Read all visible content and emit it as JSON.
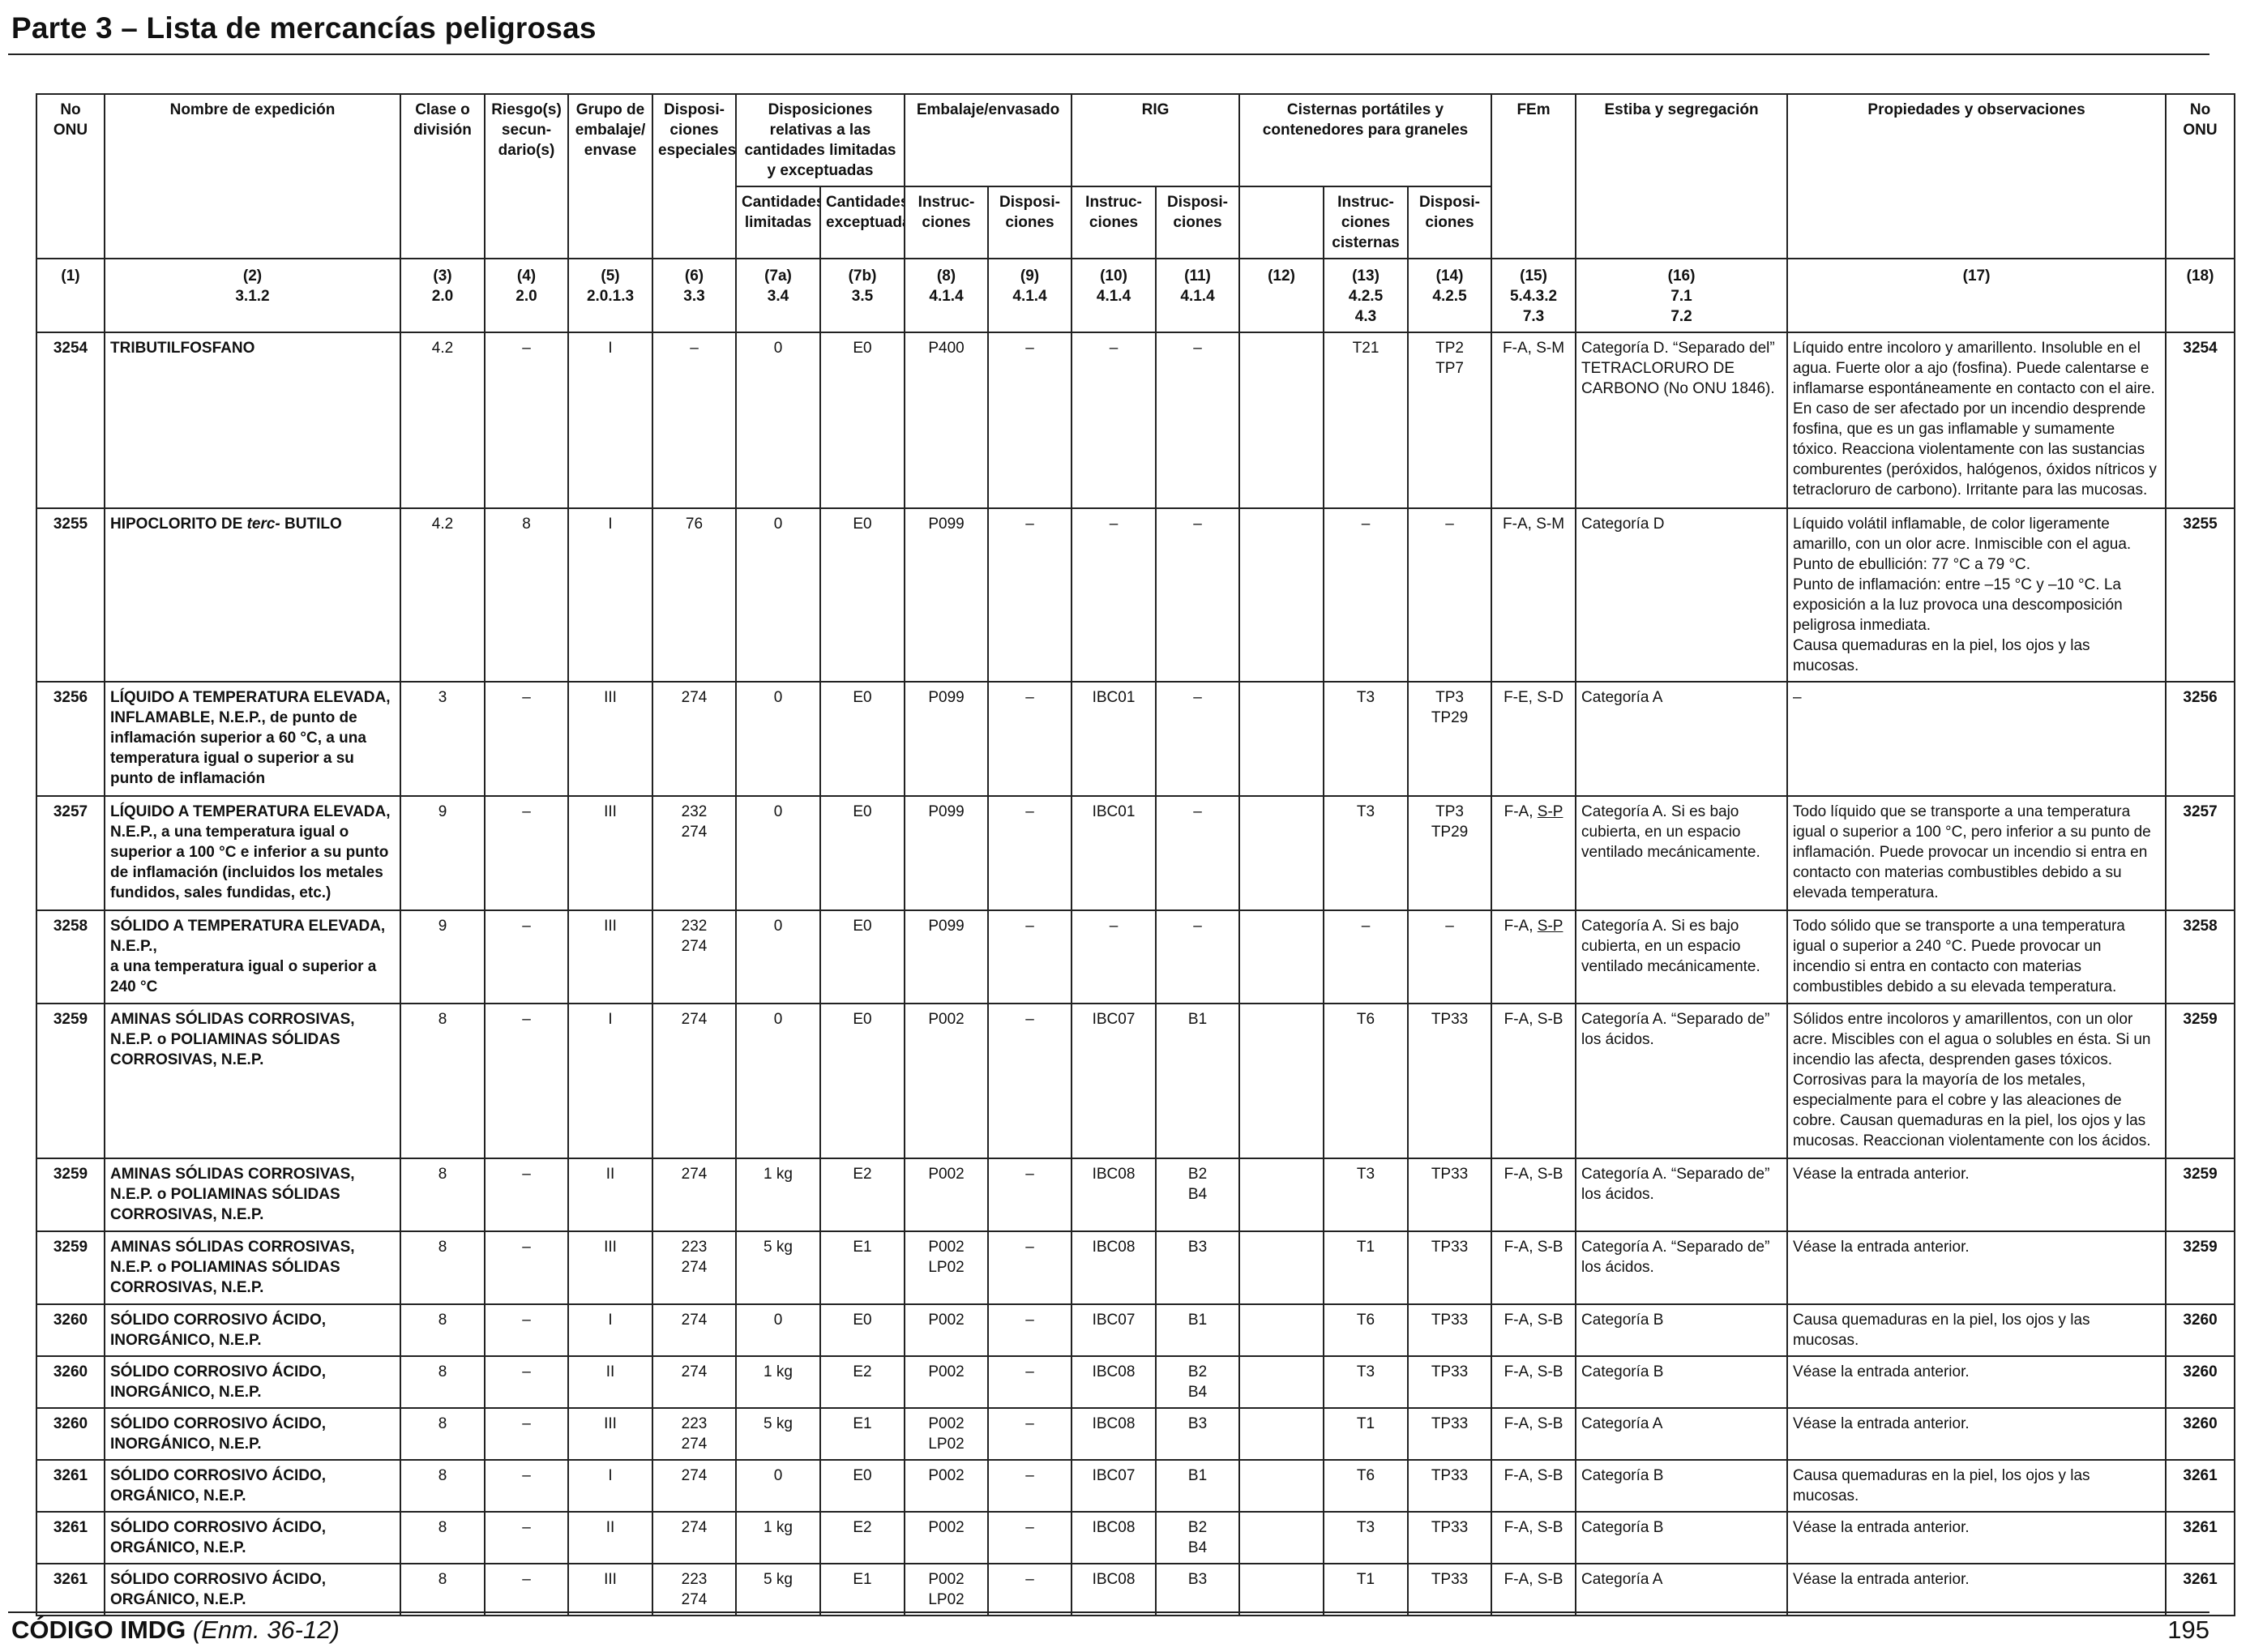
{
  "page": {
    "title": "Parte 3 – Lista de mercancías peligrosas",
    "footer_code": "CÓDIGO IMDG",
    "footer_edition": "(Enm. 36-12)",
    "page_number": "195"
  },
  "headers": {
    "no_onu": "No ONU",
    "nombre": "Nombre de expedición",
    "clase": "Clase o división",
    "riesgo": "Riesgo(s) secun-dario(s)",
    "grupo": "Grupo de embalaje/ envase",
    "dispo": "Disposi-ciones especiales",
    "disp_rel": "Disposiciones relativas a las cantidades limitadas y exceptuadas",
    "cant_lim": "Cantidades limitadas",
    "cant_exc": "Cantidades exceptuadas",
    "embalaje": "Embalaje/envasado",
    "instr": "Instruc-ciones",
    "disp": "Disposi-ciones",
    "rig": "RIG",
    "cisternas": "Cisternas portátiles y contenedores para graneles",
    "instr_cist": "Instruc-ciones cisternas",
    "fem": "FEm",
    "estiba": "Estiba y segregación",
    "propiedades": "Propiedades y observaciones",
    "no_onu_right": "No ONU"
  },
  "colnums": {
    "c1": "(1)",
    "c2": "(2)\n3.1.2",
    "c3": "(3)\n2.0",
    "c4": "(4)\n2.0",
    "c5": "(5)\n2.0.1.3",
    "c6": "(6)\n3.3",
    "c7a": "(7a)\n3.4",
    "c7b": "(7b)\n3.5",
    "c8": "(8)\n4.1.4",
    "c9": "(9)\n4.1.4",
    "c10": "(10)\n4.1.4",
    "c11": "(11)\n4.1.4",
    "c12": "(12)",
    "c13": "(13)\n4.2.5\n4.3",
    "c14": "(14)\n4.2.5",
    "c15": "(15)\n5.4.3.2\n7.3",
    "c16": "(16)\n7.1\n7.2",
    "c17": "(17)",
    "c18": "(18)"
  },
  "rows": [
    {
      "un": "3254",
      "name": "TRIBUTILFOSFANO",
      "clase": "4.2",
      "riesgo": "–",
      "grupo": "I",
      "dispo": "–",
      "lq": "0",
      "eq": "E0",
      "instr": "P400",
      "disp": "–",
      "ibc": "–",
      "ibc_disp": "–",
      "c12": "",
      "tank": "T21",
      "tank_disp": "TP2\nTP7",
      "fem": "F-A, S-M",
      "estiba": "Categoría D. “Separado del” TETRACLORURO DE CARBONO (No ONU 1846).",
      "prop": "Líquido entre incoloro y amarillento. Insoluble en el agua. Fuerte olor a ajo (fosfina). Puede calentarse e inflamarse espontáneamente en contacto con el aire. En caso de ser afectado por un incendio desprende fosfina, que es un gas inflamable y sumamente tóxico. Reacciona violentamente con las sustancias comburentes (peróxidos, halógenos, óxidos nítricos y tetracloruro de carbono). Irritante para las mucosas."
    },
    {
      "un": "3255",
      "name_a": "HIPOCLORITO DE ",
      "name_i": "terc-",
      "name_b": " BUTILO",
      "clase": "4.2",
      "riesgo": "8",
      "grupo": "I",
      "dispo": "76",
      "lq": "0",
      "eq": "E0",
      "instr": "P099",
      "disp": "–",
      "ibc": "–",
      "ibc_disp": "–",
      "c12": "",
      "tank": "–",
      "tank_disp": "–",
      "fem": "F-A, S-M",
      "estiba": "Categoría D",
      "prop": "Líquido volátil inflamable, de color ligeramente amarillo, con un olor acre. Inmiscible con el agua.\nPunto de ebullición: 77 °C a 79 °C.\nPunto de inflamación: entre –15 °C y –10 °C. La exposición a la luz provoca una descomposición peligrosa inmediata.\nCausa quemaduras en la piel, los ojos y las mucosas."
    },
    {
      "un": "3256",
      "name": "LÍQUIDO A TEMPERATURA ELEVADA, INFLAMABLE, N.E.P., de punto de inflamación superior a 60 °C, a una temperatura igual o superior a su punto de inflamación",
      "clase": "3",
      "riesgo": "–",
      "grupo": "III",
      "dispo": "274",
      "lq": "0",
      "eq": "E0",
      "instr": "P099",
      "disp": "–",
      "ibc": "IBC01",
      "ibc_disp": "–",
      "c12": "",
      "tank": "T3",
      "tank_disp": "TP3\nTP29",
      "fem": "F-E, S-D",
      "estiba": "Categoría A",
      "prop": "–"
    },
    {
      "un": "3257",
      "name": "LÍQUIDO A TEMPERATURA ELEVADA, N.E.P., a una temperatura igual o superior a 100 °C e inferior a su punto de inflamación (incluidos los metales fundidos, sales fundidas, etc.)",
      "clase": "9",
      "riesgo": "–",
      "grupo": "III",
      "dispo": "232\n274",
      "lq": "0",
      "eq": "E0",
      "instr": "P099",
      "disp": "–",
      "ibc": "IBC01",
      "ibc_disp": "–",
      "c12": "",
      "tank": "T3",
      "tank_disp": "TP3\nTP29",
      "fem_a": "F-A, ",
      "fem_u": "S-P",
      "estiba": "Categoría A. Si es bajo cubierta, en un espacio ventilado mecánicamente.",
      "prop": "Todo líquido que se transporte a una temperatura igual o superior a 100 °C, pero inferior a su punto de inflamación. Puede provocar un incendio si entra en contacto con materias combustibles debido a su elevada temperatura."
    },
    {
      "un": "3258",
      "name": "SÓLIDO A TEMPERATURA ELEVADA, N.E.P.,\na una temperatura igual o superior a 240 °C",
      "clase": "9",
      "riesgo": "–",
      "grupo": "III",
      "dispo": "232\n274",
      "lq": "0",
      "eq": "E0",
      "instr": "P099",
      "disp": "–",
      "ibc": "–",
      "ibc_disp": "–",
      "c12": "",
      "tank": "–",
      "tank_disp": "–",
      "fem_a": "F-A, ",
      "fem_u": "S-P",
      "estiba": "Categoría A. Si es bajo cubierta, en un espacio ventilado mecánicamente.",
      "prop": "Todo sólido que se transporte a una temperatura igual o superior a 240 °C. Puede provocar un incendio si entra en contacto con materias combustibles debido a su elevada temperatura."
    },
    {
      "un": "3259",
      "name": "AMINAS SÓLIDAS CORROSIVAS, N.E.P. o POLIAMINAS SÓLIDAS CORROSIVAS, N.E.P.",
      "clase": "8",
      "riesgo": "–",
      "grupo": "I",
      "dispo": "274",
      "lq": "0",
      "eq": "E0",
      "instr": "P002",
      "disp": "–",
      "ibc": "IBC07",
      "ibc_disp": "B1",
      "c12": "",
      "tank": "T6",
      "tank_disp": "TP33",
      "fem": "F-A, S-B",
      "estiba": "Categoría A. “Separado de” los ácidos.",
      "prop": "Sólidos entre incoloros y amarillentos, con un olor acre. Miscibles con el agua o solubles en ésta. Si un incendio las afecta, desprenden gases tóxicos. Corrosivas para la mayoría de los metales, especialmente para el cobre y las aleaciones de cobre. Causan quemaduras en la piel, los ojos y las mucosas. Reaccionan violentamente con los ácidos."
    },
    {
      "un": "3259",
      "name": "AMINAS SÓLIDAS CORROSIVAS, N.E.P. o POLIAMINAS SÓLIDAS CORROSIVAS, N.E.P.",
      "clase": "8",
      "riesgo": "–",
      "grupo": "II",
      "dispo": "274",
      "lq": "1 kg",
      "eq": "E2",
      "instr": "P002",
      "disp": "–",
      "ibc": "IBC08",
      "ibc_disp": "B2\nB4",
      "c12": "",
      "tank": "T3",
      "tank_disp": "TP33",
      "fem": "F-A, S-B",
      "estiba": "Categoría A. “Separado de” los ácidos.",
      "prop": "Véase la entrada anterior."
    },
    {
      "un": "3259",
      "name": "AMINAS SÓLIDAS CORROSIVAS, N.E.P. o POLIAMINAS SÓLIDAS CORROSIVAS, N.E.P.",
      "clase": "8",
      "riesgo": "–",
      "grupo": "III",
      "dispo": "223\n274",
      "lq": "5 kg",
      "eq": "E1",
      "instr": "P002\nLP02",
      "disp": "–",
      "ibc": "IBC08",
      "ibc_disp": "B3",
      "c12": "",
      "tank": "T1",
      "tank_disp": "TP33",
      "fem": "F-A, S-B",
      "estiba": "Categoría A. “Separado de” los ácidos.",
      "prop": "Véase la entrada anterior."
    },
    {
      "un": "3260",
      "name": "SÓLIDO CORROSIVO ÁCIDO, INORGÁNICO, N.E.P.",
      "clase": "8",
      "riesgo": "–",
      "grupo": "I",
      "dispo": "274",
      "lq": "0",
      "eq": "E0",
      "instr": "P002",
      "disp": "–",
      "ibc": "IBC07",
      "ibc_disp": "B1",
      "c12": "",
      "tank": "T6",
      "tank_disp": "TP33",
      "fem": "F-A, S-B",
      "estiba": "Categoría B",
      "prop": "Causa quemaduras en la piel, los ojos y las mucosas."
    },
    {
      "un": "3260",
      "name": "SÓLIDO CORROSIVO ÁCIDO, INORGÁNICO, N.E.P.",
      "clase": "8",
      "riesgo": "–",
      "grupo": "II",
      "dispo": "274",
      "lq": "1 kg",
      "eq": "E2",
      "instr": "P002",
      "disp": "–",
      "ibc": "IBC08",
      "ibc_disp": "B2\nB4",
      "c12": "",
      "tank": "T3",
      "tank_disp": "TP33",
      "fem": "F-A, S-B",
      "estiba": "Categoría B",
      "prop": "Véase la entrada anterior."
    },
    {
      "un": "3260",
      "name": "SÓLIDO CORROSIVO ÁCIDO, INORGÁNICO, N.E.P.",
      "clase": "8",
      "riesgo": "–",
      "grupo": "III",
      "dispo": "223\n274",
      "lq": "5 kg",
      "eq": "E1",
      "instr": "P002\nLP02",
      "disp": "–",
      "ibc": "IBC08",
      "ibc_disp": "B3",
      "c12": "",
      "tank": "T1",
      "tank_disp": "TP33",
      "fem": "F-A, S-B",
      "estiba": "Categoría A",
      "prop": "Véase la entrada anterior."
    },
    {
      "un": "3261",
      "name": "SÓLIDO CORROSIVO ÁCIDO, ORGÁNICO, N.E.P.",
      "clase": "8",
      "riesgo": "–",
      "grupo": "I",
      "dispo": "274",
      "lq": "0",
      "eq": "E0",
      "instr": "P002",
      "disp": "–",
      "ibc": "IBC07",
      "ibc_disp": "B1",
      "c12": "",
      "tank": "T6",
      "tank_disp": "TP33",
      "fem": "F-A, S-B",
      "estiba": "Categoría B",
      "prop": "Causa quemaduras en la piel, los ojos y las mucosas."
    },
    {
      "un": "3261",
      "name": "SÓLIDO CORROSIVO ÁCIDO, ORGÁNICO, N.E.P.",
      "clase": "8",
      "riesgo": "–",
      "grupo": "II",
      "dispo": "274",
      "lq": "1 kg",
      "eq": "E2",
      "instr": "P002",
      "disp": "–",
      "ibc": "IBC08",
      "ibc_disp": "B2\nB4",
      "c12": "",
      "tank": "T3",
      "tank_disp": "TP33",
      "fem": "F-A, S-B",
      "estiba": "Categoría B",
      "prop": "Véase la entrada anterior."
    },
    {
      "un": "3261",
      "name": "SÓLIDO CORROSIVO ÁCIDO, ORGÁNICO, N.E.P.",
      "clase": "8",
      "riesgo": "–",
      "grupo": "III",
      "dispo": "223\n274",
      "lq": "5 kg",
      "eq": "E1",
      "instr": "P002\nLP02",
      "disp": "–",
      "ibc": "IBC08",
      "ibc_disp": "B3",
      "c12": "",
      "tank": "T1",
      "tank_disp": "TP33",
      "fem": "F-A, S-B",
      "estiba": "Categoría A",
      "prop": "Véase la entrada anterior."
    }
  ]
}
